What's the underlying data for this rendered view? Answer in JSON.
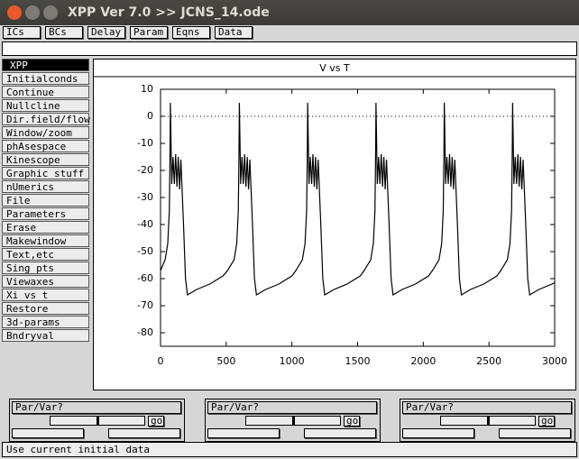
{
  "window": {
    "title": "XPP Ver 7.0 >> JCNS_14.ode"
  },
  "toolbar": [
    "ICs",
    "BCs",
    "Delay",
    "Param",
    "Eqns",
    "Data"
  ],
  "menu": [
    "XPP",
    "Initialconds",
    "Continue",
    "Nullcline",
    "Dir.field/flow",
    "Window/zoom",
    "phAsespace",
    "Kinescope",
    "Graphic stuff",
    "nUmerics",
    "File",
    "Parameters",
    "Erase",
    "Makewindow",
    "Text,etc",
    "Sing pts",
    "Viewaxes",
    "Xi vs t",
    "Restore",
    "3d-params",
    "Bndryval"
  ],
  "chart_data": {
    "type": "line",
    "title": "V vs T",
    "x": [
      0,
      35,
      55,
      67,
      72,
      75,
      85,
      95,
      105,
      115,
      125,
      135,
      145,
      155,
      165,
      175,
      190,
      205,
      275,
      375,
      475,
      510,
      560,
      580,
      592,
      597,
      600,
      610,
      620,
      630,
      640,
      650,
      660,
      670,
      680,
      690,
      700,
      715,
      730,
      800,
      900,
      1000,
      1030,
      1080,
      1100,
      1112,
      1117,
      1120,
      1130,
      1140,
      1150,
      1160,
      1170,
      1180,
      1190,
      1200,
      1210,
      1220,
      1235,
      1250,
      1320,
      1420,
      1520,
      1550,
      1600,
      1620,
      1632,
      1637,
      1640,
      1650,
      1660,
      1670,
      1680,
      1690,
      1700,
      1710,
      1720,
      1730,
      1740,
      1755,
      1770,
      1840,
      1940,
      2040,
      2070,
      2120,
      2140,
      2152,
      2157,
      2160,
      2170,
      2180,
      2190,
      2200,
      2210,
      2220,
      2230,
      2240,
      2250,
      2260,
      2275,
      2290,
      2360,
      2460,
      2560,
      2590,
      2640,
      2660,
      2672,
      2677,
      2680,
      2690,
      2700,
      2710,
      2720,
      2730,
      2740,
      2750,
      2760,
      2770,
      2780,
      2795,
      2810,
      2880,
      2980,
      3000
    ],
    "series": [
      {
        "color": "#000000",
        "values": [
          -57,
          -53,
          -47,
          -35,
          -15,
          5,
          -25,
          -15,
          -25,
          -14,
          -26,
          -15,
          -27,
          -16,
          -28,
          -40,
          -60,
          -66,
          -64,
          -62,
          -59,
          -57,
          -53,
          -47,
          -35,
          -15,
          5,
          -25,
          -15,
          -25,
          -14,
          -26,
          -15,
          -27,
          -16,
          -28,
          -40,
          -60,
          -66,
          -64,
          -62,
          -59,
          -57,
          -53,
          -47,
          -35,
          -15,
          5,
          -25,
          -15,
          -25,
          -14,
          -26,
          -15,
          -27,
          -16,
          -28,
          -40,
          -60,
          -66,
          -64,
          -62,
          -59,
          -57,
          -53,
          -47,
          -35,
          -15,
          5,
          -25,
          -15,
          -25,
          -14,
          -26,
          -15,
          -27,
          -16,
          -28,
          -40,
          -60,
          -66,
          -64,
          -62,
          -59,
          -57,
          -53,
          -47,
          -35,
          -15,
          5,
          -25,
          -15,
          -25,
          -14,
          -26,
          -15,
          -27,
          -16,
          -28,
          -40,
          -60,
          -66,
          -64,
          -62,
          -59,
          -57,
          -53,
          -47,
          -35,
          -15,
          5,
          -25,
          -15,
          -25,
          -14,
          -26,
          -15,
          -27,
          -16,
          -28,
          -40,
          -60,
          -66,
          -64,
          -62,
          -61.5
        ]
      }
    ],
    "reference_line": 0,
    "xlim": [
      0,
      3000
    ],
    "xticks": [
      0,
      500,
      1000,
      1500,
      2000,
      2500,
      3000
    ],
    "ylim": [
      -85,
      10
    ],
    "yticks": [
      10,
      0,
      -10,
      -20,
      -30,
      -40,
      -50,
      -60,
      -70,
      -80
    ]
  },
  "sliders": [
    {
      "label": "Par/Var?",
      "button": "go"
    },
    {
      "label": "Par/Var?",
      "button": "go"
    },
    {
      "label": "Par/Var?",
      "button": "go"
    }
  ],
  "status": "Use current initial data"
}
